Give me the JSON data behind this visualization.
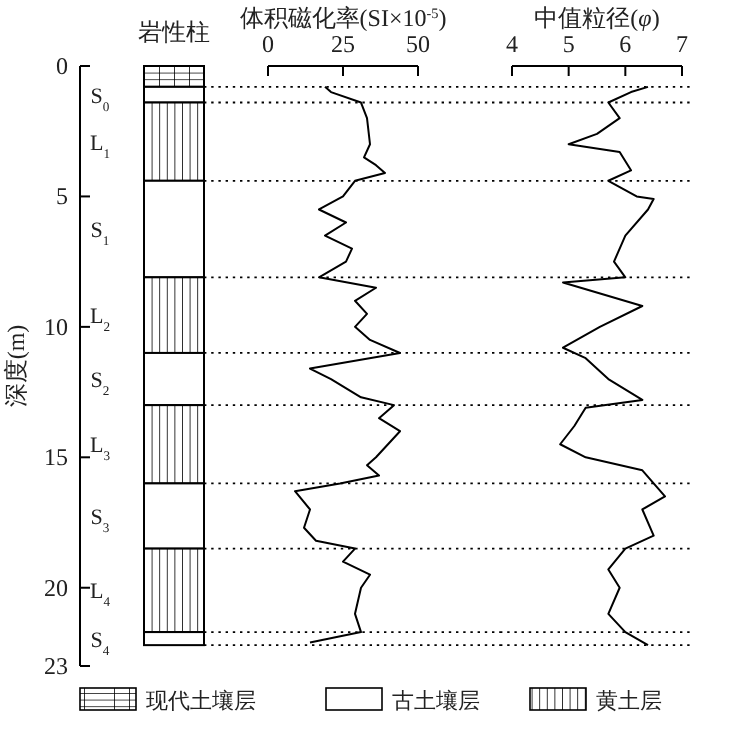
{
  "chart_data": [
    {
      "type": "bar",
      "title": "岩性柱",
      "ylabel": "深度(m)",
      "categories": [
        null
      ],
      "ylim": [
        23,
        0
      ],
      "yticks": [
        0,
        5,
        10,
        15,
        20,
        23
      ],
      "tick_labels": "y",
      "series": [
        {
          "color": "#000000",
          "base": [
            0
          ],
          "values": [
            0.8
          ]
        },
        {
          "name": "S$_{0}$",
          "color": "#ffffff",
          "base": [
            0.8
          ],
          "values": [
            0.6
          ]
        },
        {
          "name": "L$_{1}$",
          "color": "#000000",
          "base": [
            1.4
          ],
          "values": [
            3.0
          ]
        },
        {
          "name": "S$_{1}$",
          "color": "#ffffff",
          "base": [
            4.4
          ],
          "values": [
            3.7
          ]
        },
        {
          "name": "L$_{2}$",
          "color": "#000000",
          "base": [
            8.1
          ],
          "values": [
            2.9
          ]
        },
        {
          "name": "S$_{2}$",
          "color": "#ffffff",
          "base": [
            11.0
          ],
          "values": [
            2.0
          ]
        },
        {
          "name": "L$_{3}$",
          "color": "#000000",
          "base": [
            13.0
          ],
          "values": [
            3.0
          ]
        },
        {
          "name": "S$_{3}$",
          "color": "#ffffff",
          "base": [
            16.0
          ],
          "values": [
            2.5
          ]
        },
        {
          "name": "L$_{4}$",
          "color": "#000000",
          "base": [
            18.5
          ],
          "values": [
            3.2
          ]
        },
        {
          "name": "S$_{4}$",
          "color": "#ffffff",
          "base": [
            21.7
          ],
          "values": [
            0.5
          ]
        }
      ],
      "annotations": [
        "现代土壤层",
        "古土壤层",
        "黄土层"
      ]
    },
    {
      "type": "line",
      "xlabel": "体积磁化率(SI×10$^{-5}$)",
      "xlim": [
        0,
        50
      ],
      "xticks": [
        0,
        25,
        50
      ],
      "ylim": [
        23,
        0
      ],
      "tick_labels": "x",
      "line_style": "solid",
      "series": [
        {
          "color": "#000000",
          "x": [
            19,
            21,
            31,
            33,
            34,
            32,
            36,
            39,
            29,
            25,
            17,
            26,
            19,
            28,
            26,
            17,
            36,
            29,
            33,
            29,
            34,
            44,
            14,
            21,
            31,
            42,
            37,
            44,
            36,
            33,
            37,
            24,
            9,
            14,
            12,
            16,
            29,
            25,
            34,
            31,
            29,
            31,
            14
          ],
          "values": [
            0.8,
            1.0,
            1.4,
            2.0,
            3.0,
            3.5,
            3.8,
            4.1,
            4.4,
            5.0,
            5.5,
            6.0,
            6.5,
            7.0,
            7.5,
            8.1,
            8.5,
            9.0,
            9.5,
            10.0,
            10.5,
            11.0,
            11.6,
            12.0,
            12.7,
            13.0,
            13.5,
            14.0,
            15.0,
            15.3,
            15.7,
            16.0,
            16.3,
            17.0,
            17.7,
            18.2,
            18.5,
            19.0,
            19.5,
            20.0,
            21.0,
            21.7,
            22.1
          ]
        }
      ],
      "ref_lines": [
        {
          "axis": "y",
          "value": 0.8,
          "line_style": "dotted"
        },
        {
          "axis": "y",
          "value": 1.4,
          "line_style": "dotted"
        },
        {
          "axis": "y",
          "value": 4.4,
          "line_style": "dotted"
        },
        {
          "axis": "y",
          "value": 8.1,
          "line_style": "dotted"
        },
        {
          "axis": "y",
          "value": 11.0,
          "line_style": "dotted"
        },
        {
          "axis": "y",
          "value": 13.0,
          "line_style": "dotted"
        },
        {
          "axis": "y",
          "value": 16.0,
          "line_style": "dotted"
        },
        {
          "axis": "y",
          "value": 18.5,
          "line_style": "dotted"
        },
        {
          "axis": "y",
          "value": 21.7,
          "line_style": "dotted"
        },
        {
          "axis": "y",
          "value": 22.2,
          "line_style": "dotted"
        }
      ]
    },
    {
      "type": "line",
      "xlabel": "中值粒径(*φ*)",
      "xlim": [
        4,
        7
      ],
      "xticks": [
        4,
        5,
        6,
        7
      ],
      "ylim": [
        23,
        0
      ],
      "tick_labels": "x",
      "line_style": "solid",
      "series": [
        {
          "color": "#000000",
          "x": [
            6.4,
            6.1,
            5.7,
            5.9,
            5.5,
            5.0,
            5.9,
            6.1,
            5.7,
            6.2,
            6.5,
            6.4,
            6.0,
            5.8,
            6.0,
            4.9,
            6.3,
            5.55,
            4.9,
            5.3,
            5.7,
            6.3,
            5.3,
            5.1,
            4.85,
            5.3,
            6.3,
            6.5,
            6.7,
            6.3,
            6.5,
            6.0,
            5.7,
            5.9,
            5.7,
            6.0,
            6.4
          ],
          "values": [
            0.8,
            1.0,
            1.4,
            2.0,
            2.6,
            3.0,
            3.3,
            4.0,
            4.4,
            5.0,
            5.1,
            5.5,
            6.5,
            7.5,
            8.1,
            8.3,
            9.2,
            10.0,
            10.8,
            11.2,
            12.0,
            12.8,
            13.1,
            13.8,
            14.5,
            15.0,
            15.5,
            16.0,
            16.5,
            17.0,
            18.0,
            18.5,
            19.3,
            20.0,
            21.0,
            21.7,
            22.2
          ]
        }
      ],
      "ref_lines": [
        {
          "axis": "y",
          "value": 0.8,
          "line_style": "dotted"
        },
        {
          "axis": "y",
          "value": 1.4,
          "line_style": "dotted"
        },
        {
          "axis": "y",
          "value": 4.4,
          "line_style": "dotted"
        },
        {
          "axis": "y",
          "value": 8.1,
          "line_style": "dotted"
        },
        {
          "axis": "y",
          "value": 11.0,
          "line_style": "dotted"
        },
        {
          "axis": "y",
          "value": 13.0,
          "line_style": "dotted"
        },
        {
          "axis": "y",
          "value": 16.0,
          "line_style": "dotted"
        },
        {
          "axis": "y",
          "value": 18.5,
          "line_style": "dotted"
        },
        {
          "axis": "y",
          "value": 21.7,
          "line_style": "dotted"
        },
        {
          "axis": "y",
          "value": 22.2,
          "line_style": "dotted"
        }
      ]
    }
  ]
}
